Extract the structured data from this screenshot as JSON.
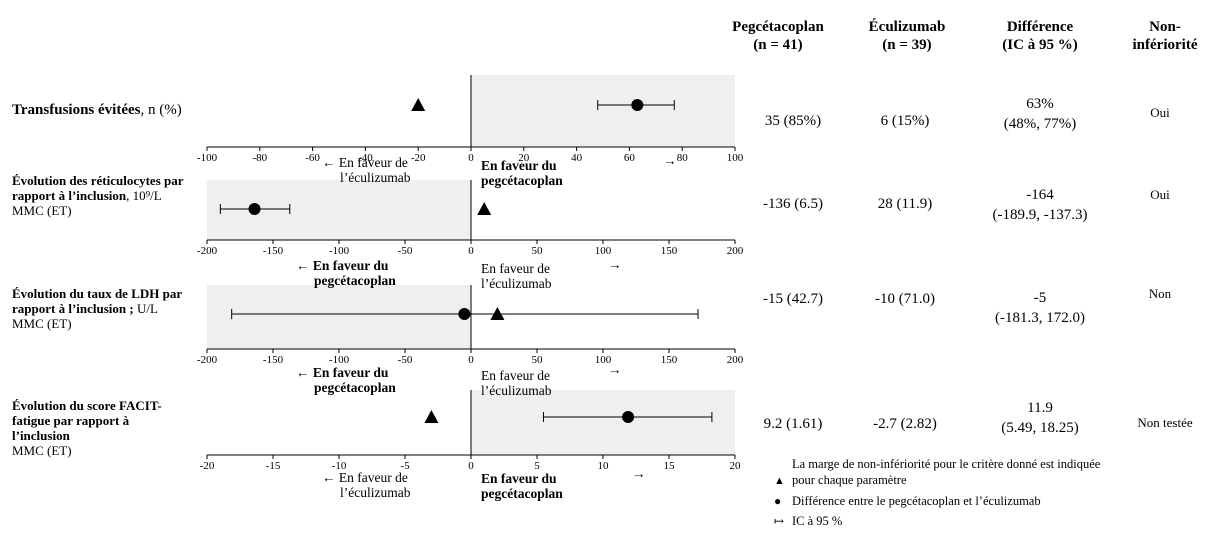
{
  "headers": {
    "pegcetacoplan": [
      "Pegcétacoplan",
      "(n = 41)"
    ],
    "eculizumab": [
      "Éculizumab",
      "(n = 39)"
    ],
    "difference": [
      "Différence",
      "(IC à 95 %)"
    ],
    "noninferiority": [
      "Non-",
      "infériorité"
    ]
  },
  "rows": [
    {
      "label_bold": "Transfusions évitées",
      "label_rest": ", n (%)",
      "peg": "35 (85%)",
      "ecu": "6 (15%)",
      "diff": [
        "63%",
        "(48%, 77%)"
      ],
      "noninf": "Oui",
      "favor_left": [
        "En faveur de",
        "l’éculizumab"
      ],
      "favor_right": [
        "En faveur du",
        "pegcétacoplan"
      ]
    },
    {
      "label_bold": "Évolution des réticulocytes par rapport à l’inclusion",
      "label_rest": ", 10⁹/L",
      "label_line2": "MMC (ET)",
      "peg": "-136 (6.5)",
      "ecu": "28 (11.9)",
      "diff": [
        "-164",
        "(-189.9, -137.3)"
      ],
      "noninf": "Oui",
      "favor_left": [
        "En faveur du",
        "pegcétacoplan"
      ],
      "favor_right": [
        "En faveur de",
        "l’éculizumab"
      ]
    },
    {
      "label_bold": "Évolution du taux de LDH par rapport à l’inclusion ;",
      "label_rest": " U/L",
      "label_line2": "MMC (ET)",
      "peg": "-15 (42.7)",
      "ecu": "-10 (71.0)",
      "diff": [
        "-5",
        "(-181.3, 172.0)"
      ],
      "noninf": "Non",
      "favor_left": [
        "En faveur du",
        "pegcétacoplan"
      ],
      "favor_right": [
        "En faveur de",
        "l’éculizumab"
      ]
    },
    {
      "label_bold": "Évolution du score FACIT-fatigue par rapport à l’inclusion",
      "label_rest": "",
      "label_line2": "MMC (ET)",
      "peg": "9.2 (1.61)",
      "ecu": "-2.7 (2.82)",
      "diff": [
        "11.9",
        "(5.49, 18.25)"
      ],
      "noninf": "Non testée",
      "favor_left": [
        "En faveur de",
        "l’éculizumab"
      ],
      "favor_right": [
        "En faveur du",
        "pegcétacoplan"
      ]
    }
  ],
  "legend": {
    "triangle": [
      "La marge de non-infériorité pour le critère donné est indiquée",
      "pour chaque paramètre"
    ],
    "circle": "Différence entre le pegcétacoplan et l’éculizumab",
    "ci": "IC à 95 %"
  },
  "chart_data": [
    {
      "type": "forest",
      "xlim": [
        -100,
        100
      ],
      "ticks": [
        -100,
        -80,
        -60,
        -40,
        -20,
        0,
        20,
        40,
        60,
        80,
        100
      ],
      "point": 63,
      "ci": [
        48,
        77
      ],
      "margin": -20,
      "shaded_side": "right"
    },
    {
      "type": "forest",
      "xlim": [
        -200,
        200
      ],
      "ticks": [
        -200,
        -150,
        -100,
        -50,
        0,
        50,
        100,
        150,
        200
      ],
      "point": -164,
      "ci": [
        -189.9,
        -137.3
      ],
      "margin": 10,
      "shaded_side": "left"
    },
    {
      "type": "forest",
      "xlim": [
        -200,
        200
      ],
      "ticks": [
        -200,
        -150,
        -100,
        -50,
        0,
        50,
        100,
        150,
        200
      ],
      "point": -5,
      "ci": [
        -181.3,
        172.0
      ],
      "margin": 20,
      "shaded_side": "left"
    },
    {
      "type": "forest",
      "xlim": [
        -20,
        20
      ],
      "ticks": [
        -20,
        -15,
        -10,
        -5,
        0,
        5,
        10,
        15,
        20
      ],
      "point": 11.9,
      "ci": [
        5.49,
        18.25
      ],
      "margin": -3,
      "shaded_side": "right"
    }
  ]
}
